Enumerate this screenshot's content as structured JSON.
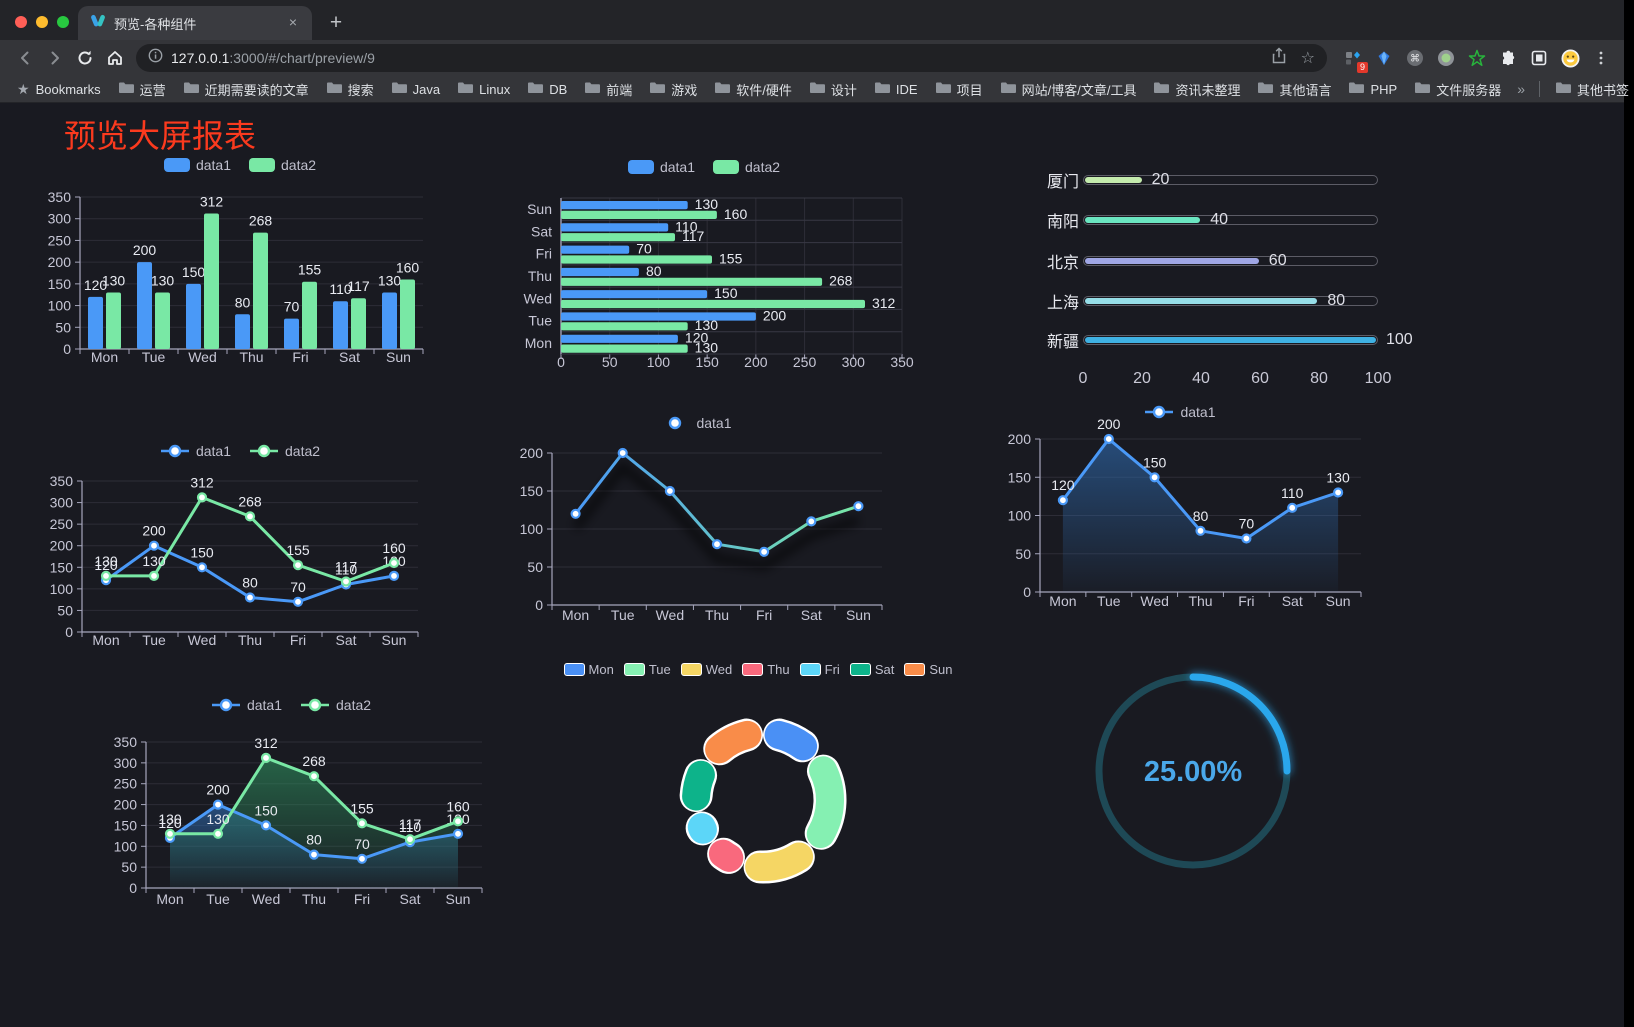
{
  "browser": {
    "tab_title": "预览-各种组件",
    "url": {
      "host": "127.0.0.1",
      "rest": ":3000/#/chart/preview/9"
    },
    "extension_badge": "9",
    "bookmarks_bar": {
      "star_label": "Bookmarks",
      "folders": [
        "运营",
        "近期需要读的文章",
        "搜索",
        "Java",
        "Linux",
        "DB",
        "前端",
        "游戏",
        "软件/硬件",
        "设计",
        "IDE",
        "项目",
        "网站/博客/文章/工具",
        "资讯未整理",
        "其他语言",
        "PHP",
        "文件服务器"
      ],
      "overflow": "»",
      "other_bookmarks": "其他书签"
    }
  },
  "page": {
    "title": "预览大屏报表",
    "title_color": "#fb3a1e"
  },
  "chart_data": [
    {
      "id": "grouped-bar",
      "type": "bar",
      "categories": [
        "Mon",
        "Tue",
        "Wed",
        "Thu",
        "Fri",
        "Sat",
        "Sun"
      ],
      "series": [
        {
          "name": "data1",
          "color": "#4a99f7",
          "values": [
            120,
            200,
            150,
            80,
            70,
            110,
            130
          ]
        },
        {
          "name": "data2",
          "color": "#79e8a5",
          "values": [
            130,
            130,
            312,
            268,
            155,
            117,
            160
          ]
        }
      ],
      "ylim": [
        0,
        350
      ],
      "ystep": 50,
      "value_labels": true,
      "grid": true,
      "legend_position": "top"
    },
    {
      "id": "grouped-bar-horizontal",
      "type": "bar",
      "orientation": "horizontal",
      "categories": [
        "Mon",
        "Tue",
        "Wed",
        "Thu",
        "Fri",
        "Sat",
        "Sun"
      ],
      "series": [
        {
          "name": "data1",
          "color": "#4a99f7",
          "values": [
            120,
            200,
            150,
            80,
            70,
            110,
            130
          ]
        },
        {
          "name": "data2",
          "color": "#79e8a5",
          "values": [
            130,
            130,
            312,
            268,
            155,
            117,
            160
          ]
        }
      ],
      "xlim": [
        0,
        350
      ],
      "xstep": 50,
      "value_labels": true,
      "grid": true,
      "legend_position": "top"
    },
    {
      "id": "city-progress",
      "type": "bar",
      "style": "progress-pills",
      "max": 100,
      "xticks": [
        0,
        20,
        40,
        60,
        80,
        100
      ],
      "items": [
        {
          "label": "厦门",
          "value": 20,
          "color": "#c4ebad"
        },
        {
          "label": "南阳",
          "value": 40,
          "color": "#6be6c1"
        },
        {
          "label": "北京",
          "value": 60,
          "color": "#a0a7e6"
        },
        {
          "label": "上海",
          "value": 80,
          "color": "#96dee8"
        },
        {
          "label": "新疆",
          "value": 100,
          "color": "#3fb1e3"
        }
      ]
    },
    {
      "id": "line-two-series",
      "type": "line",
      "categories": [
        "Mon",
        "Tue",
        "Wed",
        "Thu",
        "Fri",
        "Sat",
        "Sun"
      ],
      "series": [
        {
          "name": "data1",
          "color": "#4a99f7",
          "values": [
            120,
            200,
            150,
            80,
            70,
            110,
            130
          ]
        },
        {
          "name": "data2",
          "color": "#79e8a5",
          "values": [
            130,
            130,
            312,
            268,
            155,
            117,
            160
          ]
        }
      ],
      "ylim": [
        0,
        350
      ],
      "ystep": 50,
      "value_labels": true,
      "legend_position": "top"
    },
    {
      "id": "line-gradient",
      "type": "line",
      "categories": [
        "Mon",
        "Tue",
        "Wed",
        "Thu",
        "Fri",
        "Sat",
        "Sun"
      ],
      "series": [
        {
          "name": "data1",
          "color": "#4a99f7",
          "gradient": [
            "#4a99f7",
            "#79e8a5"
          ],
          "values": [
            120,
            200,
            150,
            80,
            70,
            110,
            130
          ]
        }
      ],
      "ylim": [
        0,
        200
      ],
      "ystep": 50,
      "value_labels": false,
      "shadow": true,
      "legend_position": "top"
    },
    {
      "id": "line-area",
      "type": "area",
      "categories": [
        "Mon",
        "Tue",
        "Wed",
        "Thu",
        "Fri",
        "Sat",
        "Sun"
      ],
      "series": [
        {
          "name": "data1",
          "color": "#4a99f7",
          "area": "#2f6bb0",
          "values": [
            120,
            200,
            150,
            80,
            70,
            110,
            130
          ]
        }
      ],
      "ylim": [
        0,
        200
      ],
      "ystep": 50,
      "value_labels": true,
      "legend_position": "top"
    },
    {
      "id": "line-area-two",
      "type": "area",
      "categories": [
        "Mon",
        "Tue",
        "Wed",
        "Thu",
        "Fri",
        "Sat",
        "Sun"
      ],
      "series": [
        {
          "name": "data1",
          "color": "#4a99f7",
          "area": "#2f6bb0",
          "values": [
            120,
            200,
            150,
            80,
            70,
            110,
            130
          ]
        },
        {
          "name": "data2",
          "color": "#79e8a5",
          "area": "#2e8f5e",
          "values": [
            130,
            130,
            312,
            268,
            155,
            117,
            160
          ]
        }
      ],
      "ylim": [
        0,
        350
      ],
      "ystep": 50,
      "value_labels": true,
      "legend_position": "top"
    },
    {
      "id": "donut",
      "type": "pie",
      "inner_radius_ratio": 0.64,
      "rounded_segments": true,
      "border_color": "#ffffff",
      "items": [
        {
          "label": "Mon",
          "value": 120,
          "color": "#4a90f5"
        },
        {
          "label": "Tue",
          "value": 200,
          "color": "#85f0b2"
        },
        {
          "label": "Wed",
          "value": 150,
          "color": "#f5d664"
        },
        {
          "label": "Thu",
          "value": 80,
          "color": "#f9697d"
        },
        {
          "label": "Fri",
          "value": 70,
          "color": "#5cd6f8"
        },
        {
          "label": "Sat",
          "value": 110,
          "color": "#0db38a"
        },
        {
          "label": "Sun",
          "value": 130,
          "color": "#f98c49"
        }
      ],
      "legend_position": "top"
    },
    {
      "id": "ring-gauge",
      "type": "gauge",
      "value": 25,
      "display": "25.00%",
      "color": "#2aa7ec",
      "track_color": "#1e4956",
      "text_color": "#4aa8ea",
      "start_angle": "top",
      "direction": "clockwise"
    }
  ]
}
